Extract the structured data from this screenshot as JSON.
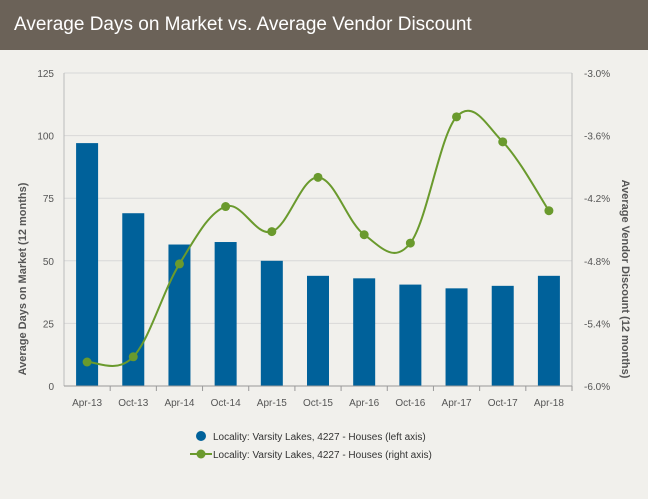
{
  "header": {
    "title": "Average Days on Market vs. Average Vendor Discount"
  },
  "colors": {
    "bar": "#00619a",
    "line": "#6a9a2d",
    "header_bg": "#6b6258",
    "grid": "#d8d8d8"
  },
  "chart_data": {
    "type": "bar",
    "title": "Average Days on Market vs. Average Vendor Discount",
    "categories": [
      "Apr-13",
      "Oct-13",
      "Apr-14",
      "Oct-14",
      "Apr-15",
      "Oct-15",
      "Apr-16",
      "Oct-16",
      "Apr-17",
      "Oct-17",
      "Apr-18"
    ],
    "left_axis": {
      "label": "Average Days on Market (12 months)",
      "ticks": [
        "0",
        "25",
        "50",
        "75",
        "100",
        "125"
      ],
      "ylim": [
        0,
        125
      ]
    },
    "right_axis": {
      "label": "Average Vendor Discount (12 months)",
      "ticks": [
        "-6.0%",
        "-5.4%",
        "-4.8%",
        "-4.2%",
        "-3.6%",
        "-3.0%"
      ],
      "ylim": [
        -6.0,
        -3.0
      ]
    },
    "series": [
      {
        "name": "Locality: Varsity Lakes, 4227 - Houses (left axis)",
        "type": "bar",
        "axis": "left",
        "values": [
          97,
          69,
          56.5,
          57.5,
          50,
          44,
          43,
          40.5,
          39,
          40,
          44
        ]
      },
      {
        "name": "Locality: Varsity Lakes, 4227 - Houses (right axis)",
        "type": "line",
        "axis": "right",
        "values": [
          -5.77,
          -5.72,
          -4.83,
          -4.28,
          -4.52,
          -4.0,
          -4.55,
          -4.63,
          -3.42,
          -3.66,
          -4.32
        ]
      }
    ],
    "grid": true,
    "legend": "bottom-center"
  }
}
